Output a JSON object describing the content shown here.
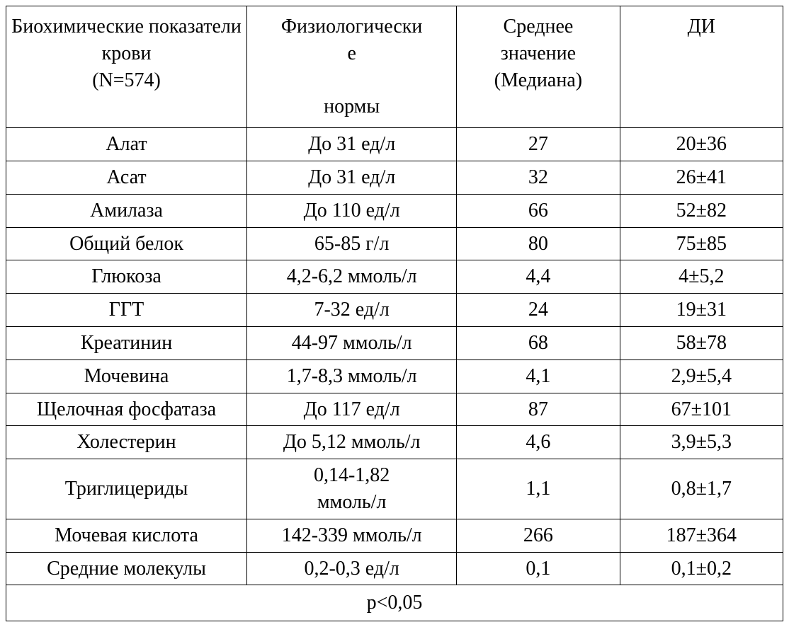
{
  "table": {
    "type": "table",
    "background_color": "#ffffff",
    "border_color": "#000000",
    "font_family": "Times New Roman",
    "header_fontsize_pt": 21,
    "body_fontsize_pt": 21,
    "column_widths_pct": [
      31,
      27,
      21,
      21
    ],
    "columns": [
      "Биохимические показатели крови (N=574)",
      "Физиологические\nнормы",
      "Среднее значение (Медиана)",
      "ДИ"
    ],
    "columns_h0": "Биохимические показатели крови",
    "columns_h0_sub": "(N=574)",
    "columns_h1_a": "Физиологически",
    "columns_h1_b": "е",
    "columns_h1_c": "нормы",
    "columns_h2_a": "Среднее",
    "columns_h2_b": "значение",
    "columns_h2_c": "(Медиана)",
    "columns_h3": "ДИ",
    "rows": [
      {
        "c0": "Алат",
        "c1": "До 31 ед/л",
        "c2": "27",
        "c3": "20±36"
      },
      {
        "c0": "Асат",
        "c1": "До 31 ед/л",
        "c2": "32",
        "c3": "26±41"
      },
      {
        "c0": "Амилаза",
        "c1": "До 110 ед/л",
        "c2": "66",
        "c3": "52±82"
      },
      {
        "c0": "Общий белок",
        "c1": "65-85 г/л",
        "c2": "80",
        "c3": "75±85"
      },
      {
        "c0": "Глюкоза",
        "c1": "4,2-6,2 ммоль/л",
        "c2": "4,4",
        "c3": "4±5,2"
      },
      {
        "c0": "ГГТ",
        "c1": "7-32 ед/л",
        "c2": "24",
        "c3": "19±31"
      },
      {
        "c0": "Креатинин",
        "c1": "44-97 ммоль/л",
        "c2": "68",
        "c3": "58±78"
      },
      {
        "c0": "Мочевина",
        "c1": "1,7-8,3 ммоль/л",
        "c2": "4,1",
        "c3": "2,9±5,4"
      },
      {
        "c0": "Щелочная фосфатаза",
        "c1": "До 117 ед/л",
        "c2": "87",
        "c3": "67±101"
      },
      {
        "c0": "Холестерин",
        "c1": "До 5,12 ммоль/л",
        "c2": "4,6",
        "c3": "3,9±5,3"
      },
      {
        "c0": "Триглицериды",
        "c1": "0,14-1,82 ммоль/л",
        "c2": "1,1",
        "c3": "0,8±1,7"
      },
      {
        "c0": "Мочевая кислота",
        "c1": "142-339 ммоль/л",
        "c2": "266",
        "c3": "187±364"
      },
      {
        "c0": "Средние молекулы",
        "c1": "0,2-0,3 ед/л",
        "c2": "0,1",
        "c3": "0,1±0,2"
      }
    ],
    "rows_10_c1_a": "0,14-1,82",
    "rows_10_c1_b": "ммоль/л",
    "footer": "p<0,05"
  }
}
